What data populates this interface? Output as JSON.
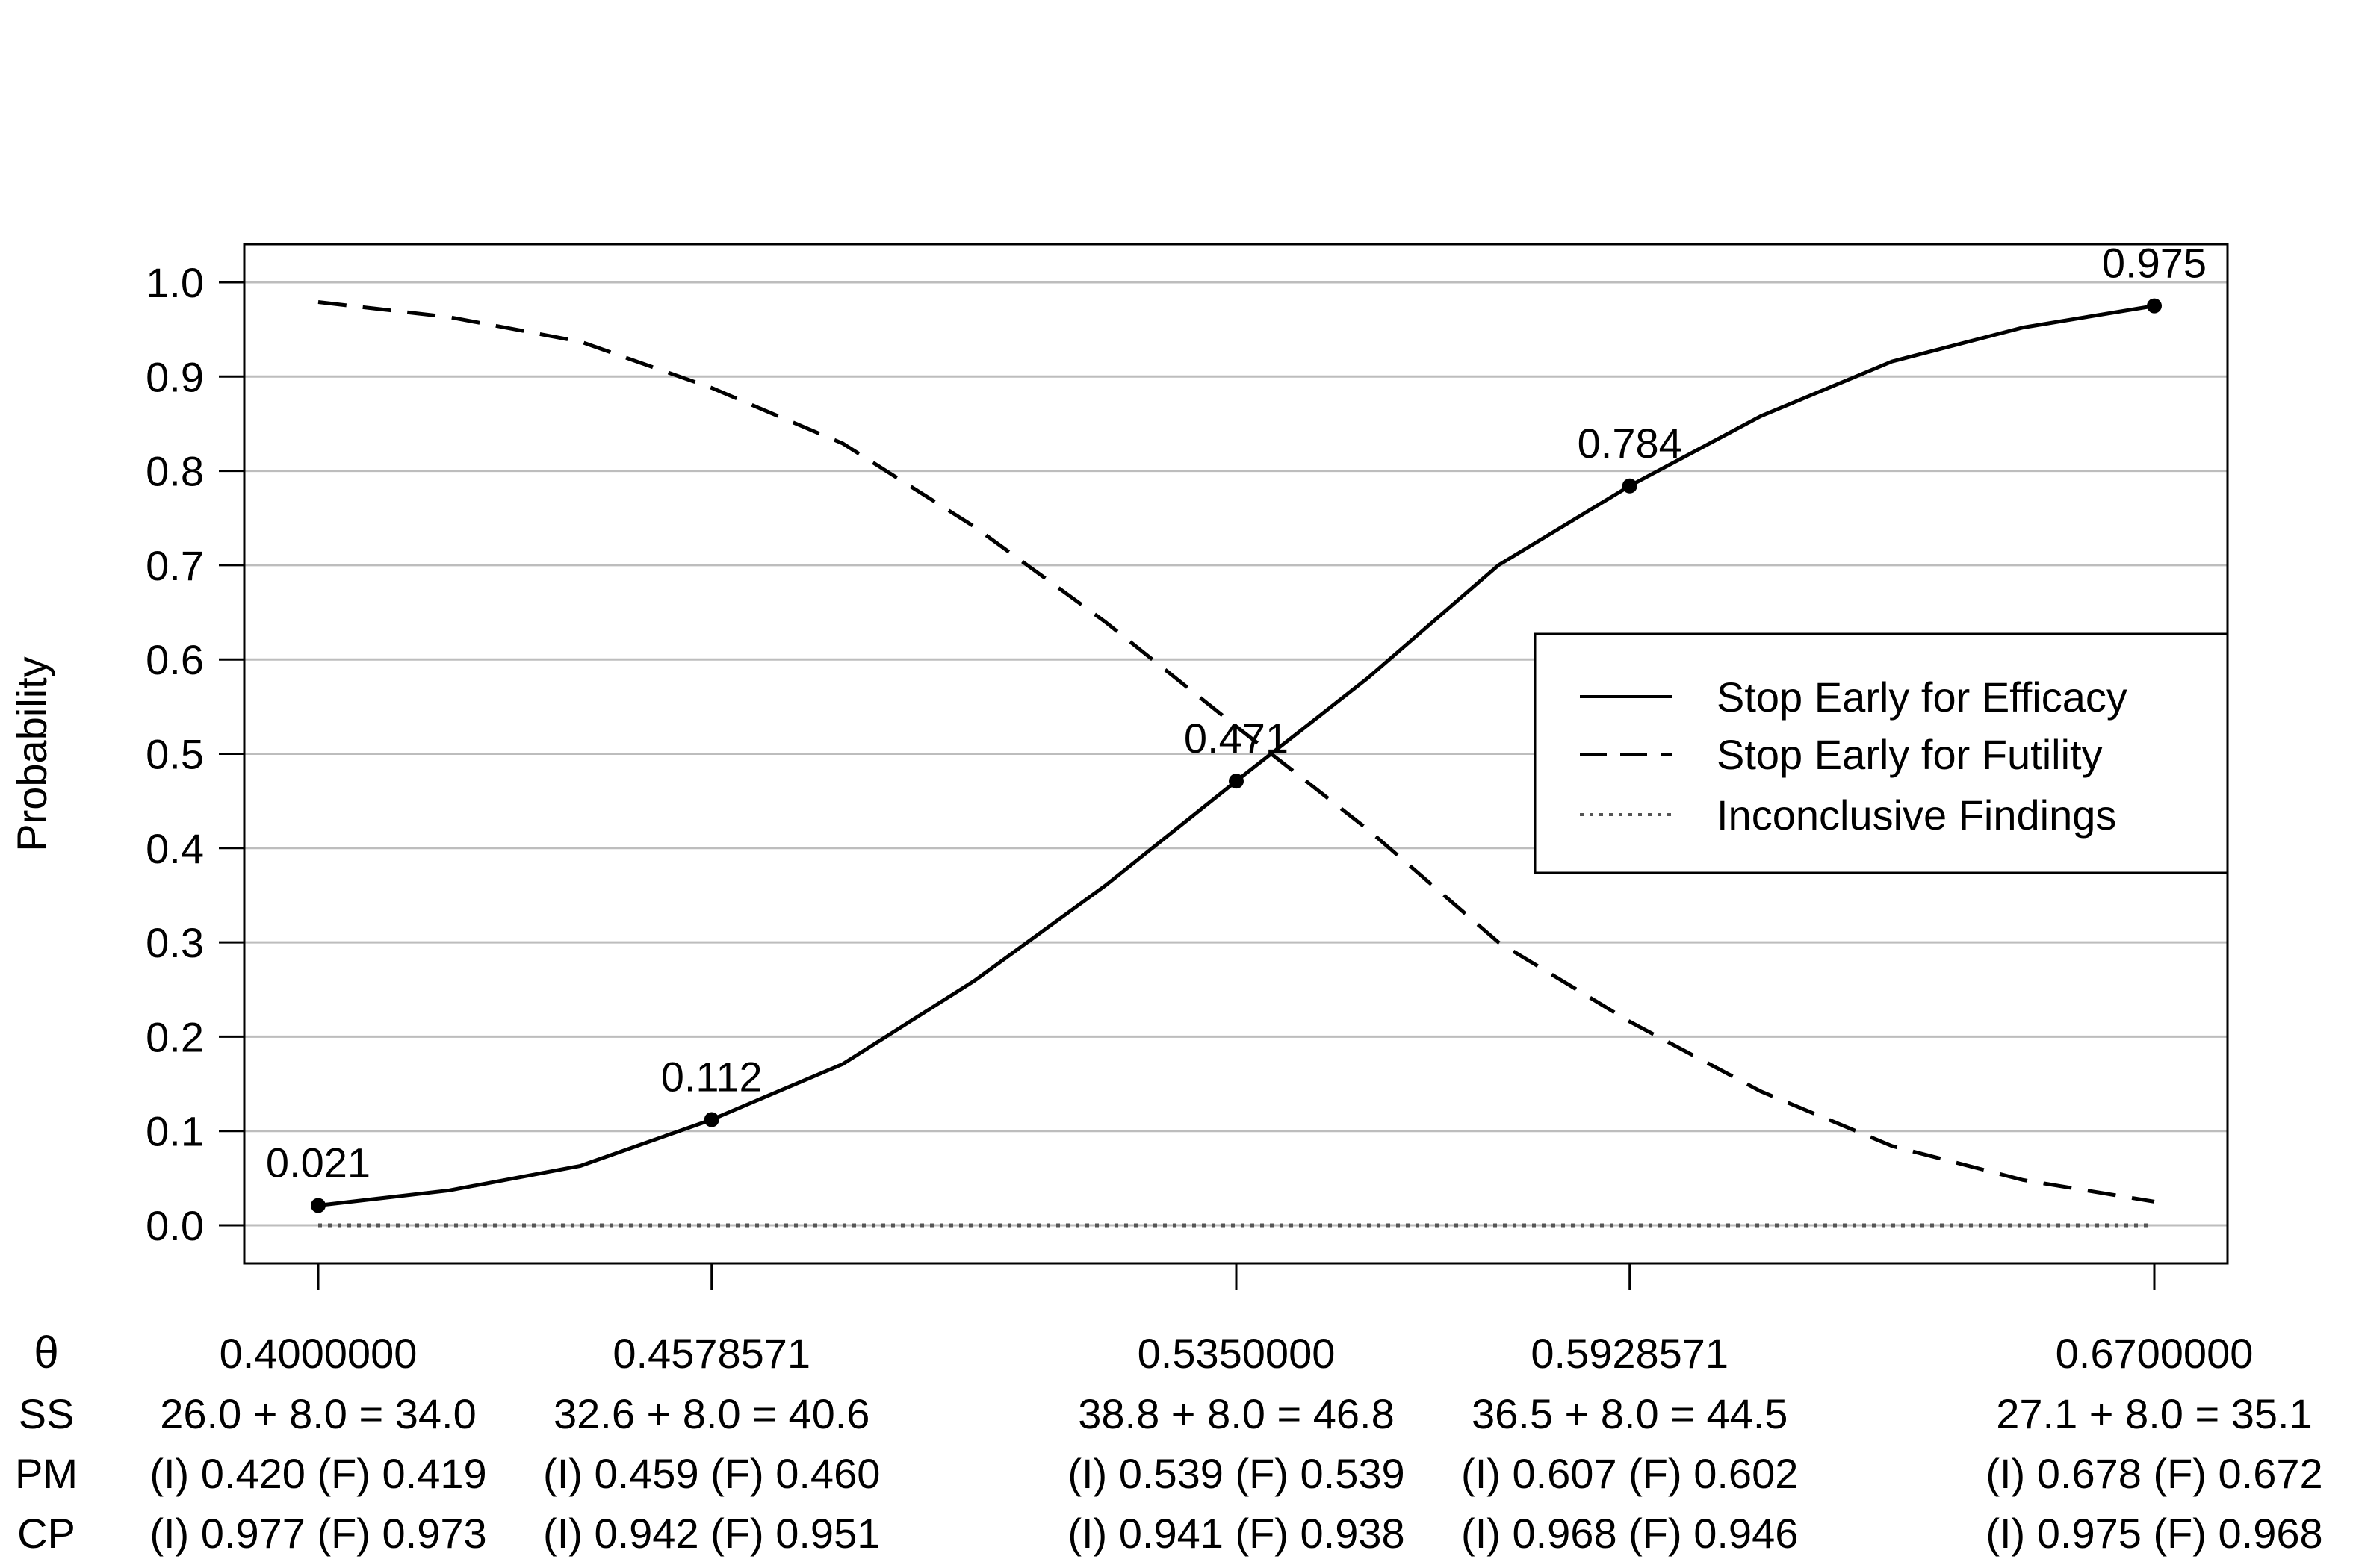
{
  "chart_data": {
    "type": "line",
    "ylabel": "Probability",
    "ylim": [
      0,
      1
    ],
    "yticks": [
      "0.0",
      "0.1",
      "0.2",
      "0.3",
      "0.4",
      "0.5",
      "0.6",
      "0.7",
      "0.8",
      "0.9",
      "1.0"
    ],
    "xlim": [
      0.4,
      0.67
    ],
    "grid": "horizontal",
    "legend_position": "right",
    "x": [
      0.4,
      0.4192857,
      0.4385714,
      0.4578571,
      0.4771429,
      0.4964286,
      0.5157143,
      0.535,
      0.5542857,
      0.5735714,
      0.5928571,
      0.6121429,
      0.6314286,
      0.6507143,
      0.67
    ],
    "series": [
      {
        "name": "Stop Early for Efficacy",
        "linestyle": "solid",
        "values": [
          0.021,
          0.037,
          0.063,
          0.112,
          0.171,
          0.259,
          0.36,
          0.471,
          0.58,
          0.7,
          0.784,
          0.858,
          0.916,
          0.952,
          0.975
        ]
      },
      {
        "name": "Stop Early for Futility",
        "linestyle": "dashed",
        "values": [
          0.979,
          0.963,
          0.937,
          0.888,
          0.829,
          0.741,
          0.64,
          0.529,
          0.42,
          0.3,
          0.216,
          0.142,
          0.084,
          0.048,
          0.025
        ]
      },
      {
        "name": "Inconclusive Findings",
        "linestyle": "dotted",
        "values": [
          0,
          0,
          0,
          0,
          0,
          0,
          0,
          0,
          0,
          0,
          0,
          0,
          0,
          0,
          0
        ]
      }
    ],
    "annotations": [
      {
        "x": 0.4,
        "y": 0.021,
        "label": "0.021"
      },
      {
        "x": 0.4578571,
        "y": 0.112,
        "label": "0.112"
      },
      {
        "x": 0.535,
        "y": 0.471,
        "label": "0.471"
      },
      {
        "x": 0.5928571,
        "y": 0.784,
        "label": "0.784"
      },
      {
        "x": 0.67,
        "y": 0.975,
        "label": "0.975"
      }
    ],
    "table": {
      "row_labels": [
        "θ",
        "SS",
        "PM",
        "CP"
      ],
      "columns": [
        {
          "x": 0.4,
          "theta": "0.4000000",
          "ss": "26.0 + 8.0 = 34.0",
          "pm": "(I) 0.420 (F) 0.419",
          "cp": "(I) 0.977 (F) 0.973"
        },
        {
          "x": 0.4578571,
          "theta": "0.4578571",
          "ss": "32.6 + 8.0 = 40.6",
          "pm": "(I) 0.459 (F) 0.460",
          "cp": "(I) 0.942 (F) 0.951"
        },
        {
          "x": 0.535,
          "theta": "0.5350000",
          "ss": "38.8 + 8.0 = 46.8",
          "pm": "(I) 0.539 (F) 0.539",
          "cp": "(I) 0.941 (F) 0.938"
        },
        {
          "x": 0.5928571,
          "theta": "0.5928571",
          "ss": "36.5 + 8.0 = 44.5",
          "pm": "(I) 0.607 (F) 0.602",
          "cp": "(I) 0.968 (F) 0.946"
        },
        {
          "x": 0.67,
          "theta": "0.6700000",
          "ss": "27.1 + 8.0 = 35.1",
          "pm": "(I) 0.678 (F) 0.672",
          "cp": "(I) 0.975 (F) 0.968"
        }
      ]
    }
  }
}
